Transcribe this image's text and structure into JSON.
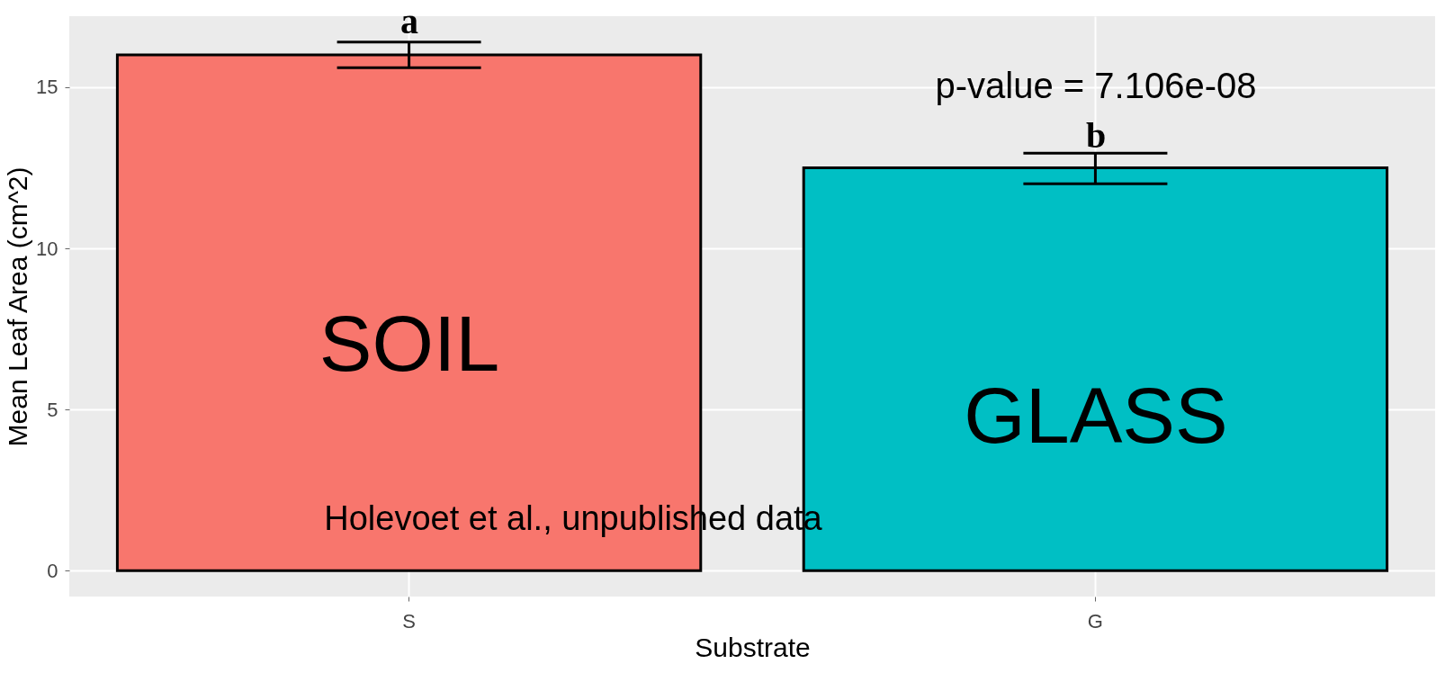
{
  "chart_data": {
    "type": "bar",
    "xlabel": "Substrate",
    "ylabel": "Mean Leaf Area (cm^2)",
    "categories": [
      "S",
      "G"
    ],
    "values": [
      16.0,
      12.5
    ],
    "colors": [
      "#f8766d",
      "#00bfc4"
    ],
    "errors": [
      [
        15.6,
        16.4
      ],
      [
        12.0,
        12.95
      ]
    ],
    "ylim": [
      -0.8,
      17.2
    ],
    "yticks": [
      0,
      5,
      10,
      15
    ],
    "grid": true,
    "annotations": [
      "a",
      "b",
      "p-value = 7.106e-08",
      "SOIL",
      "GLASS",
      "Holevoet et al., unpublished data"
    ]
  }
}
